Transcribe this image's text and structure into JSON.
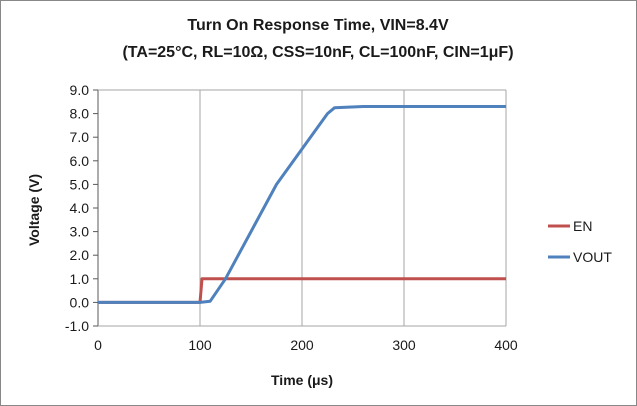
{
  "chart_data": {
    "type": "line",
    "title": "Turn On Response Time,  VIN=8.4V",
    "subtitle": "(TA=25°C, RL=10Ω, CSS=10nF, CL=100nF, CIN=1μF)",
    "xlabel": "Time (μs)",
    "ylabel": "Voltage (V)",
    "xlim": [
      0,
      400
    ],
    "ylim": [
      -1,
      9
    ],
    "x_ticks": [
      "0",
      "100",
      "200",
      "300",
      "400"
    ],
    "y_ticks": [
      "-1.0",
      "0.0",
      "1.0",
      "2.0",
      "3.0",
      "4.0",
      "5.0",
      "6.0",
      "7.0",
      "8.0",
      "9.0"
    ],
    "grid": "vertical",
    "legend_position": "right",
    "series": [
      {
        "name": "EN",
        "color": "#c0504d",
        "points": [
          [
            0,
            0.0
          ],
          [
            100,
            0.0
          ],
          [
            102,
            1.0
          ],
          [
            200,
            1.0
          ],
          [
            300,
            1.0
          ],
          [
            400,
            1.0
          ]
        ]
      },
      {
        "name": "VOUT",
        "color": "#4f81bd",
        "points": [
          [
            0,
            0.0
          ],
          [
            50,
            0.0
          ],
          [
            100,
            0.0
          ],
          [
            110,
            0.05
          ],
          [
            125,
            1.0
          ],
          [
            150,
            3.0
          ],
          [
            175,
            5.0
          ],
          [
            200,
            6.5
          ],
          [
            225,
            8.0
          ],
          [
            232,
            8.25
          ],
          [
            260,
            8.3
          ],
          [
            300,
            8.3
          ],
          [
            350,
            8.3
          ],
          [
            400,
            8.3
          ]
        ]
      }
    ]
  }
}
